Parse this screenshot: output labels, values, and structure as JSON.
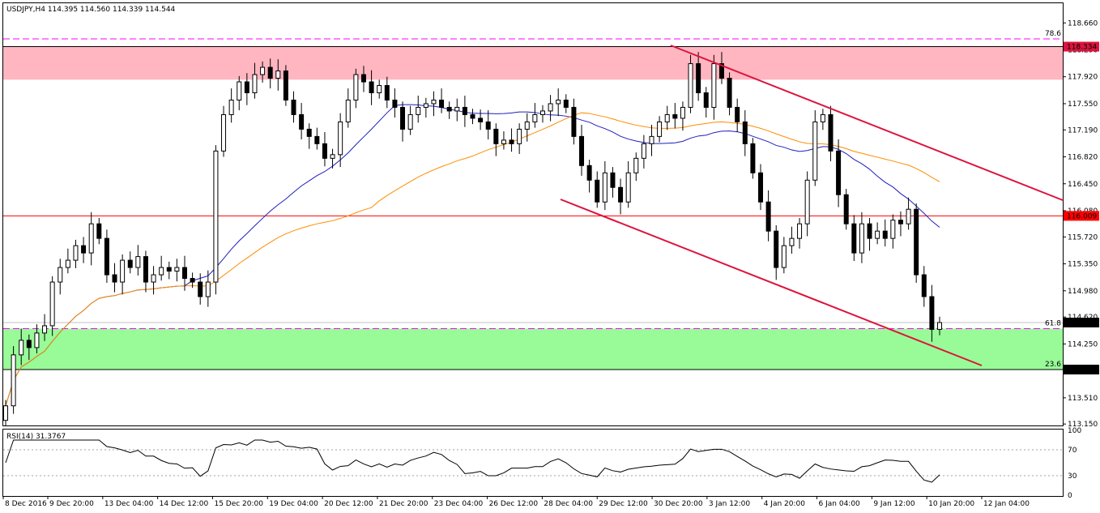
{
  "header": {
    "title": "USDJPY,H4  114.395 114.560 114.339 114.544"
  },
  "rsi_header": "RSI(14) 31.3767",
  "colors": {
    "resistance_zone": "#ffb6c1",
    "support_zone": "#98fb98",
    "channel": "#dc143c",
    "ma_fast": "#1e1ebe",
    "ma_slow": "#ff8c00",
    "fib": "#ff00ff",
    "level_line": "#ff0000",
    "candle_up": "#ffffff",
    "candle_down": "#000000"
  },
  "chart_data": {
    "type": "candlestick",
    "title": "USDJPY,H4",
    "ohlc_header": {
      "open": 114.395,
      "high": 114.56,
      "low": 114.339,
      "close": 114.544
    },
    "ylim": [
      113.13,
      118.93
    ],
    "price_ticks": [
      "118.660",
      "118.290",
      "117.920",
      "117.550",
      "117.190",
      "116.820",
      "116.450",
      "116.080",
      "115.720",
      "115.350",
      "114.980",
      "114.620",
      "114.250",
      "113.880",
      "113.510",
      "113.150"
    ],
    "time_labels": [
      "8 Dec 2016",
      "9 Dec 20:00",
      "13 Dec 04:00",
      "14 Dec 12:00",
      "15 Dec 20:00",
      "19 Dec 04:00",
      "20 Dec 12:00",
      "21 Dec 20:00",
      "23 Dec 04:00",
      "26 Dec 12:00",
      "28 Dec 04:00",
      "29 Dec 12:00",
      "30 Dec 20:00",
      "3 Jan 12:00",
      "4 Jan 20:00",
      "6 Jan 04:00",
      "9 Jan 12:00",
      "10 Jan 20:00",
      "12 Jan 04:00"
    ],
    "closes": [
      113.4,
      114.1,
      114.3,
      114.2,
      114.4,
      114.5,
      115.1,
      115.3,
      115.4,
      115.6,
      115.5,
      115.9,
      115.7,
      115.2,
      115.1,
      115.4,
      115.3,
      115.45,
      115.1,
      115.2,
      115.3,
      115.25,
      115.3,
      115.15,
      115.1,
      114.9,
      115.1,
      116.9,
      117.4,
      117.6,
      117.85,
      117.7,
      117.95,
      118.05,
      117.9,
      118.0,
      117.6,
      117.4,
      117.2,
      117.1,
      117.0,
      116.8,
      116.85,
      117.3,
      117.6,
      117.95,
      117.85,
      117.7,
      117.8,
      117.6,
      117.5,
      117.2,
      117.4,
      117.5,
      117.55,
      117.6,
      117.5,
      117.45,
      117.5,
      117.4,
      117.35,
      117.3,
      117.2,
      117.0,
      117.05,
      117.0,
      117.2,
      117.3,
      117.4,
      117.45,
      117.55,
      117.6,
      117.5,
      117.1,
      116.7,
      116.5,
      116.2,
      116.6,
      116.4,
      116.2,
      116.6,
      116.8,
      117.0,
      117.1,
      117.3,
      117.4,
      117.35,
      117.5,
      118.1,
      117.7,
      117.5,
      118.1,
      117.9,
      117.5,
      117.3,
      117.0,
      116.6,
      116.2,
      115.8,
      115.3,
      115.6,
      115.7,
      115.9,
      116.5,
      117.3,
      117.4,
      116.9,
      116.3,
      115.9,
      115.5,
      115.9,
      115.7,
      115.8,
      115.7,
      115.95,
      115.9,
      116.1,
      115.2,
      114.9,
      114.45,
      114.544
    ],
    "rsi": {
      "name": "RSI(14)",
      "last": 31.3767,
      "ylim": [
        0,
        100
      ],
      "ticks": [
        100,
        70,
        30,
        0
      ],
      "levels": [
        70,
        30
      ]
    },
    "levels": [
      {
        "label": "118.334",
        "price": 118.334,
        "type": "zone_top"
      },
      {
        "label": "116.009",
        "price": 116.009,
        "type": "horizontal"
      },
      {
        "label": "113.898",
        "price": 113.898,
        "type": "zone_bottom"
      },
      {
        "label": "114.544",
        "price": 114.544,
        "type": "current_price"
      }
    ],
    "zones": [
      {
        "name": "resistance",
        "from": 117.88,
        "to": 118.334
      },
      {
        "name": "support",
        "from": 113.898,
        "to": 114.46
      }
    ],
    "fibonacci": [
      {
        "label": "78.6",
        "price": 118.44
      },
      {
        "label": "61.8",
        "price": 114.46
      },
      {
        "label": "23.6",
        "price": 113.898
      }
    ]
  }
}
